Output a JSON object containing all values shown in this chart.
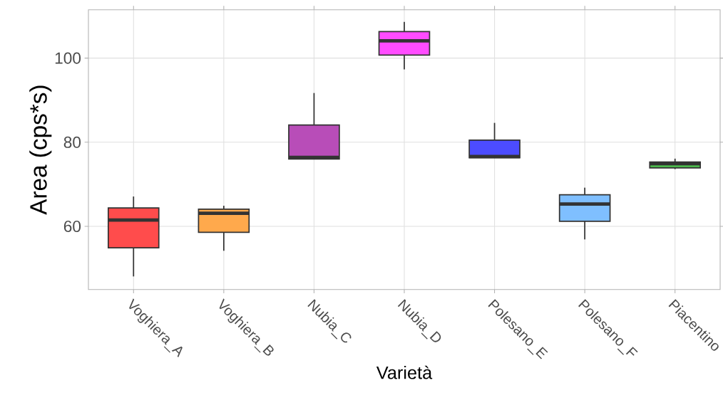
{
  "chart_data": {
    "type": "box",
    "xlabel": "Varietà",
    "ylabel": "Area (cps*s)",
    "categories": [
      "Voghiera_A",
      "Voghiera_B",
      "Nubia_C",
      "Nubia_D",
      "Polesano_E",
      "Polesano_F",
      "Piacentino"
    ],
    "colors": [
      "#ff4c4c",
      "#ffa94c",
      "#b84db8",
      "#ff4cff",
      "#4c4cff",
      "#7fbfff",
      "#4cb84c"
    ],
    "boxes": [
      {
        "low": 48.1,
        "q1": 54.9,
        "median": 61.5,
        "q3": 64.4,
        "high": 67.1
      },
      {
        "low": 54.2,
        "q1": 58.6,
        "median": 63.1,
        "q3": 64.1,
        "high": 64.9
      },
      {
        "low": 76.0,
        "q1": 76.0,
        "median": 76.4,
        "q3": 84.1,
        "high": 91.7
      },
      {
        "low": 97.3,
        "q1": 100.7,
        "median": 104.1,
        "q3": 106.3,
        "high": 108.6
      },
      {
        "low": 76.3,
        "q1": 76.3,
        "median": 76.6,
        "q3": 80.5,
        "high": 84.6
      },
      {
        "low": 56.9,
        "q1": 61.2,
        "median": 65.3,
        "q3": 67.5,
        "high": 69.2
      },
      {
        "low": 73.6,
        "q1": 73.9,
        "median": 74.9,
        "q3": 75.3,
        "high": 76.1
      }
    ],
    "ylim": [
      45,
      111.5
    ],
    "yticks": [
      60,
      80,
      100
    ],
    "grid": true
  }
}
